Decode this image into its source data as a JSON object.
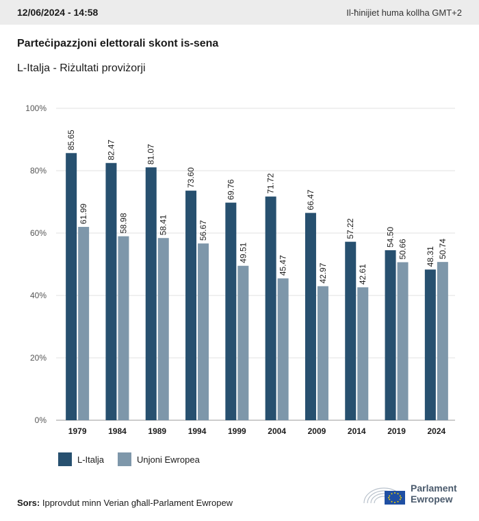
{
  "header": {
    "timestamp": "12/06/2024 - 14:58",
    "timezone_note": "Il-ħinijiet huma kollha GMT+2"
  },
  "chart_data": {
    "type": "bar",
    "title": "Parteċipazzjoni elettorali skont is-sena",
    "subtitle": "L-Italja - Riżultati proviżorji",
    "categories": [
      "1979",
      "1984",
      "1989",
      "1994",
      "1999",
      "2004",
      "2009",
      "2014",
      "2019",
      "2024"
    ],
    "series": [
      {
        "name": "L-Italja",
        "color": "#27506f",
        "values": [
          85.65,
          82.47,
          81.07,
          73.6,
          69.76,
          71.72,
          66.47,
          57.22,
          54.5,
          48.31
        ],
        "labels": [
          "85.65",
          "82.47",
          "81.07",
          "73.60",
          "69.76",
          "71.72",
          "66.47",
          "57.22",
          "54.50",
          "48.31"
        ]
      },
      {
        "name": "Unjoni Ewropea",
        "color": "#7e97aa",
        "values": [
          61.99,
          58.98,
          58.41,
          56.67,
          49.51,
          45.47,
          42.97,
          42.61,
          50.66,
          50.74
        ],
        "labels": [
          "61.99",
          "58.98",
          "58.41",
          "56.67",
          "49.51",
          "45.47",
          "42.97",
          "42.61",
          "50.66",
          "50.74"
        ]
      }
    ],
    "y_ticks": [
      "0%",
      "20%",
      "40%",
      "60%",
      "80%",
      "100%"
    ],
    "ylim": [
      0,
      100
    ],
    "grid": true,
    "legend_position": "bottom-left"
  },
  "legend": {
    "italy_label": "L-Italja",
    "eu_label": "Unjoni Ewropea"
  },
  "source": {
    "label": "Sors:",
    "text": "Ipprovdut minn Verian għall-Parlament Ewropew"
  },
  "logo": {
    "line1": "Parlament",
    "line2": "Ewropew"
  }
}
